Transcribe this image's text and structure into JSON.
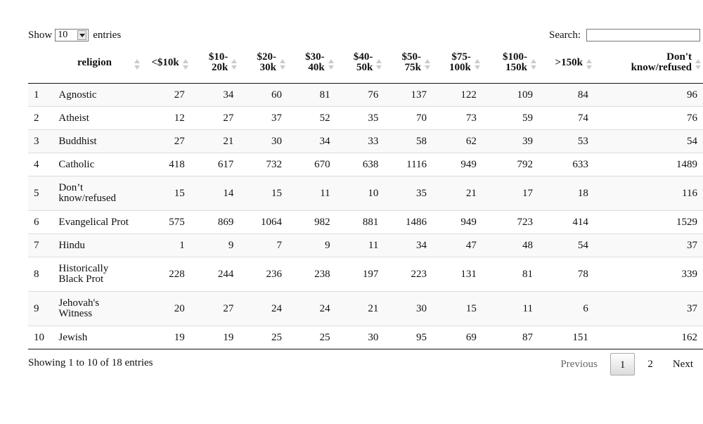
{
  "controls": {
    "show_label": "Show",
    "page_length": "10",
    "entries_label": "entries",
    "search_label": "Search:",
    "search_value": ""
  },
  "columns": [
    {
      "l1": "",
      "l2": ""
    },
    {
      "l1": "",
      "l2": "religion"
    },
    {
      "l1": "",
      "l2": "<$10k"
    },
    {
      "l1": "$10-",
      "l2": "20k"
    },
    {
      "l1": "$20-",
      "l2": "30k"
    },
    {
      "l1": "$30-",
      "l2": "40k"
    },
    {
      "l1": "$40-",
      "l2": "50k"
    },
    {
      "l1": "$50-",
      "l2": "75k"
    },
    {
      "l1": "$75-",
      "l2": "100k"
    },
    {
      "l1": "$100-",
      "l2": "150k"
    },
    {
      "l1": "",
      "l2": ">150k"
    },
    {
      "l1": "Don't",
      "l2": "know/refused"
    }
  ],
  "rows": [
    {
      "idx": "1",
      "n1": "Agnostic",
      "n2": "",
      "v": [
        "27",
        "34",
        "60",
        "81",
        "76",
        "137",
        "122",
        "109",
        "84",
        "96"
      ]
    },
    {
      "idx": "2",
      "n1": "Atheist",
      "n2": "",
      "v": [
        "12",
        "27",
        "37",
        "52",
        "35",
        "70",
        "73",
        "59",
        "74",
        "76"
      ]
    },
    {
      "idx": "3",
      "n1": "Buddhist",
      "n2": "",
      "v": [
        "27",
        "21",
        "30",
        "34",
        "33",
        "58",
        "62",
        "39",
        "53",
        "54"
      ]
    },
    {
      "idx": "4",
      "n1": "Catholic",
      "n2": "",
      "v": [
        "418",
        "617",
        "732",
        "670",
        "638",
        "1116",
        "949",
        "792",
        "633",
        "1489"
      ]
    },
    {
      "idx": "5",
      "n1": "Don’t",
      "n2": "know/refused",
      "v": [
        "15",
        "14",
        "15",
        "11",
        "10",
        "35",
        "21",
        "17",
        "18",
        "116"
      ]
    },
    {
      "idx": "6",
      "n1": "Evangelical Prot",
      "n2": "",
      "v": [
        "575",
        "869",
        "1064",
        "982",
        "881",
        "1486",
        "949",
        "723",
        "414",
        "1529"
      ]
    },
    {
      "idx": "7",
      "n1": "Hindu",
      "n2": "",
      "v": [
        "1",
        "9",
        "7",
        "9",
        "11",
        "34",
        "47",
        "48",
        "54",
        "37"
      ]
    },
    {
      "idx": "8",
      "n1": "Historically",
      "n2": "Black Prot",
      "v": [
        "228",
        "244",
        "236",
        "238",
        "197",
        "223",
        "131",
        "81",
        "78",
        "339"
      ]
    },
    {
      "idx": "9",
      "n1": "Jehovah's",
      "n2": "Witness",
      "v": [
        "20",
        "27",
        "24",
        "24",
        "21",
        "30",
        "15",
        "11",
        "6",
        "37"
      ]
    },
    {
      "idx": "10",
      "n1": "Jewish",
      "n2": "",
      "v": [
        "19",
        "19",
        "25",
        "25",
        "30",
        "95",
        "69",
        "87",
        "151",
        "162"
      ]
    }
  ],
  "footer": {
    "info": "Showing 1 to 10 of 18 entries",
    "previous": "Previous",
    "pages": [
      "1",
      "2"
    ],
    "next": "Next"
  }
}
